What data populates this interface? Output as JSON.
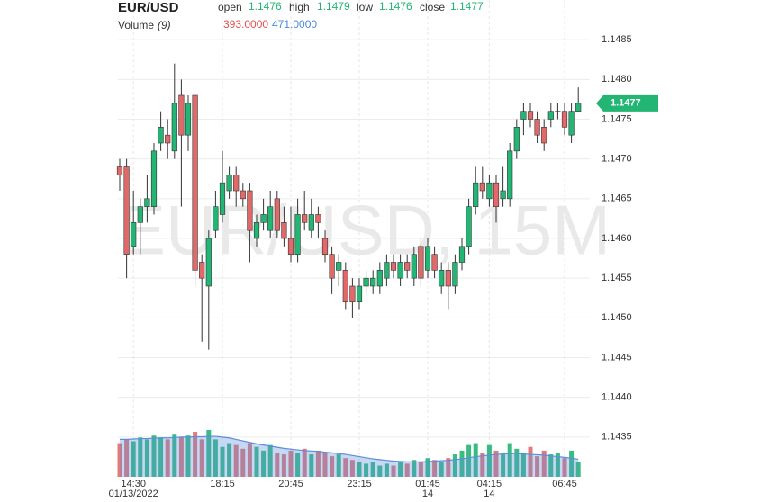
{
  "chart_data": {
    "type": "candlestick",
    "title": "EUR/USD",
    "watermark": "EUR/USD, 15M",
    "ohlc_legend": [
      {
        "label": "open",
        "value": 1.1476
      },
      {
        "label": "high",
        "value": 1.1479
      },
      {
        "label": "low",
        "value": 1.1476
      },
      {
        "label": "close",
        "value": 1.1477
      }
    ],
    "volume_title": "Volume",
    "volume_period": "(9)",
    "volume_last": {
      "value": 393,
      "label": "393.0000"
    },
    "volume_ma_last": {
      "value": 471,
      "label": "471.0000"
    },
    "last_price": 1.1477,
    "up_color": "#22b573",
    "down_color": "#e06a6a",
    "volume_ma_color": "#5b8fd9",
    "categories": [
      null,
      null,
      "14:30",
      null,
      null,
      null,
      null,
      null,
      null,
      null,
      null,
      null,
      null,
      null,
      null,
      "18:15",
      null,
      null,
      null,
      null,
      null,
      null,
      null,
      null,
      null,
      "20:45",
      null,
      null,
      null,
      null,
      null,
      null,
      null,
      null,
      null,
      "23:15",
      null,
      null,
      null,
      null,
      null,
      null,
      null,
      null,
      null,
      "01:45",
      null,
      null,
      null,
      null,
      null,
      null,
      null,
      null,
      "04:15",
      null,
      null,
      null,
      null,
      null,
      null,
      null,
      null,
      null,
      null,
      "06:45",
      null,
      null
    ],
    "date_labels": [
      null,
      null,
      "01/13/2022",
      null,
      null,
      null,
      null,
      null,
      null,
      null,
      null,
      null,
      null,
      null,
      null,
      null,
      null,
      null,
      null,
      null,
      null,
      null,
      null,
      null,
      null,
      null,
      null,
      null,
      null,
      null,
      null,
      null,
      null,
      null,
      null,
      null,
      null,
      null,
      null,
      null,
      null,
      null,
      null,
      null,
      null,
      "14",
      null,
      null,
      null,
      null,
      null,
      null,
      null,
      null,
      "14",
      null,
      null,
      null,
      null,
      null,
      null,
      null,
      null,
      null,
      null,
      null,
      null,
      null
    ],
    "open": [
      1.1469,
      1.1469,
      1.1459,
      1.1462,
      1.1464,
      1.1464,
      1.1472,
      1.1473,
      1.1471,
      1.1478,
      1.1473,
      1.1478,
      1.1457,
      1.1454,
      1.1461,
      1.1463,
      1.1466,
      1.1468,
      1.1466,
      1.1466,
      1.146,
      1.1462,
      1.1461,
      1.1465,
      1.1462,
      1.146,
      1.1458,
      1.1463,
      1.1461,
      1.1463,
      1.146,
      1.1458,
      1.1456,
      1.1456,
      1.1454,
      1.1452,
      1.1454,
      1.1454,
      1.1454,
      1.1455,
      1.1457,
      1.1455,
      1.1457,
      1.1455,
      1.1459,
      1.1456,
      1.1458,
      1.1454,
      1.1456,
      1.1454,
      1.1457,
      1.1459,
      1.1464,
      1.1467,
      1.1465,
      1.1467,
      1.1465,
      1.1465,
      1.1471,
      1.1475,
      1.1476,
      1.1475,
      1.1474,
      1.1475,
      1.1476,
      1.1476,
      1.1473,
      1.1476
    ],
    "high": [
      1.147,
      1.147,
      1.1466,
      1.1465,
      1.1468,
      1.1472,
      1.1476,
      1.1475,
      1.1482,
      1.148,
      1.1478,
      1.1478,
      1.1458,
      1.1461,
      1.1466,
      1.1471,
      1.1469,
      1.1469,
      1.1467,
      1.1467,
      1.1463,
      1.1465,
      1.1466,
      1.1466,
      1.1464,
      1.1464,
      1.1465,
      1.1466,
      1.1465,
      1.1464,
      1.1461,
      1.1459,
      1.1458,
      1.1457,
      1.1455,
      1.1455,
      1.1456,
      1.1456,
      1.1457,
      1.1458,
      1.1458,
      1.1458,
      1.1458,
      1.1459,
      1.146,
      1.146,
      1.1459,
      1.1457,
      1.1457,
      1.1458,
      1.146,
      1.1465,
      1.1469,
      1.1469,
      1.1468,
      1.1468,
      1.1469,
      1.1472,
      1.1475,
      1.1477,
      1.1477,
      1.1476,
      1.1475,
      1.1477,
      1.1477,
      1.1477,
      1.1477,
      1.1479
    ],
    "low": [
      1.1466,
      1.1455,
      1.1458,
      1.1458,
      1.1462,
      1.1463,
      1.1471,
      1.147,
      1.147,
      1.1464,
      1.1471,
      1.1454,
      1.1447,
      1.1446,
      1.146,
      1.1462,
      1.1465,
      1.1464,
      1.1464,
      1.1457,
      1.1459,
      1.1461,
      1.146,
      1.146,
      1.1459,
      1.1457,
      1.1457,
      1.1461,
      1.146,
      1.146,
      1.1457,
      1.1453,
      1.1454,
      1.1451,
      1.145,
      1.1451,
      1.1453,
      1.1453,
      1.1453,
      1.1454,
      1.1455,
      1.1454,
      1.1455,
      1.1454,
      1.1454,
      1.1455,
      1.1455,
      1.1453,
      1.1451,
      1.1453,
      1.1456,
      1.1458,
      1.1463,
      1.1465,
      1.1464,
      1.1462,
      1.1464,
      1.1464,
      1.147,
      1.1473,
      1.1474,
      1.1472,
      1.1471,
      1.1474,
      1.1475,
      1.1473,
      1.1472,
      1.1476
    ],
    "close": [
      1.1468,
      1.1458,
      1.1462,
      1.1464,
      1.1465,
      1.1471,
      1.1474,
      1.1472,
      1.1477,
      1.1473,
      1.1477,
      1.1456,
      1.1455,
      1.146,
      1.1464,
      1.1467,
      1.1468,
      1.1466,
      1.1465,
      1.1461,
      1.1462,
      1.1463,
      1.1464,
      1.1461,
      1.146,
      1.1458,
      1.1463,
      1.1462,
      1.1463,
      1.1462,
      1.1458,
      1.1455,
      1.1457,
      1.1452,
      1.1452,
      1.1454,
      1.1455,
      1.1455,
      1.1456,
      1.1457,
      1.1456,
      1.1457,
      1.1456,
      1.1458,
      1.1455,
      1.1459,
      1.1456,
      1.1456,
      1.1454,
      1.1457,
      1.1459,
      1.1464,
      1.1467,
      1.1466,
      1.1467,
      1.1464,
      1.1466,
      1.1471,
      1.1474,
      1.1476,
      1.1475,
      1.1473,
      1.1472,
      1.1476,
      1.1476,
      1.1474,
      1.1476,
      1.1477
    ],
    "volume": [
      900,
      1000,
      950,
      1050,
      1000,
      1100,
      1050,
      1000,
      1150,
      1050,
      1100,
      1200,
      1000,
      1250,
      1000,
      800,
      900,
      850,
      750,
      900,
      800,
      700,
      850,
      650,
      600,
      700,
      650,
      750,
      600,
      700,
      650,
      550,
      600,
      500,
      450,
      400,
      350,
      400,
      300,
      350,
      300,
      400,
      350,
      450,
      400,
      500,
      450,
      400,
      500,
      600,
      700,
      850,
      900,
      650,
      850,
      700,
      600,
      900,
      750,
      650,
      800,
      550,
      700,
      600,
      650,
      500,
      700,
      393
    ],
    "volume_ma": [
      1000,
      1000,
      1010,
      1020,
      1020,
      1030,
      1040,
      1040,
      1050,
      1060,
      1060,
      1070,
      1070,
      1080,
      1080,
      1060,
      1040,
      1000,
      960,
      920,
      880,
      850,
      820,
      790,
      760,
      740,
      720,
      700,
      690,
      680,
      660,
      640,
      620,
      600,
      570,
      540,
      510,
      480,
      460,
      440,
      420,
      410,
      400,
      400,
      400,
      410,
      420,
      430,
      440,
      460,
      480,
      510,
      540,
      560,
      580,
      600,
      610,
      620,
      620,
      610,
      600,
      590,
      580,
      560,
      540,
      520,
      500,
      471
    ],
    "ylim": [
      1.143,
      1.149
    ],
    "yticks": [
      1.1435,
      {
        "value": 1.144,
        "label": "1.1440"
      },
      1.1445,
      {
        "value": 1.145,
        "label": "1.1450"
      },
      1.1455,
      {
        "value": 1.146,
        "label": "1.1460"
      },
      1.1465,
      {
        "value": 1.147,
        "label": "1.1470"
      },
      1.1475,
      {
        "value": 1.148,
        "label": "1.1480"
      },
      1.1485
    ],
    "grid": true
  }
}
